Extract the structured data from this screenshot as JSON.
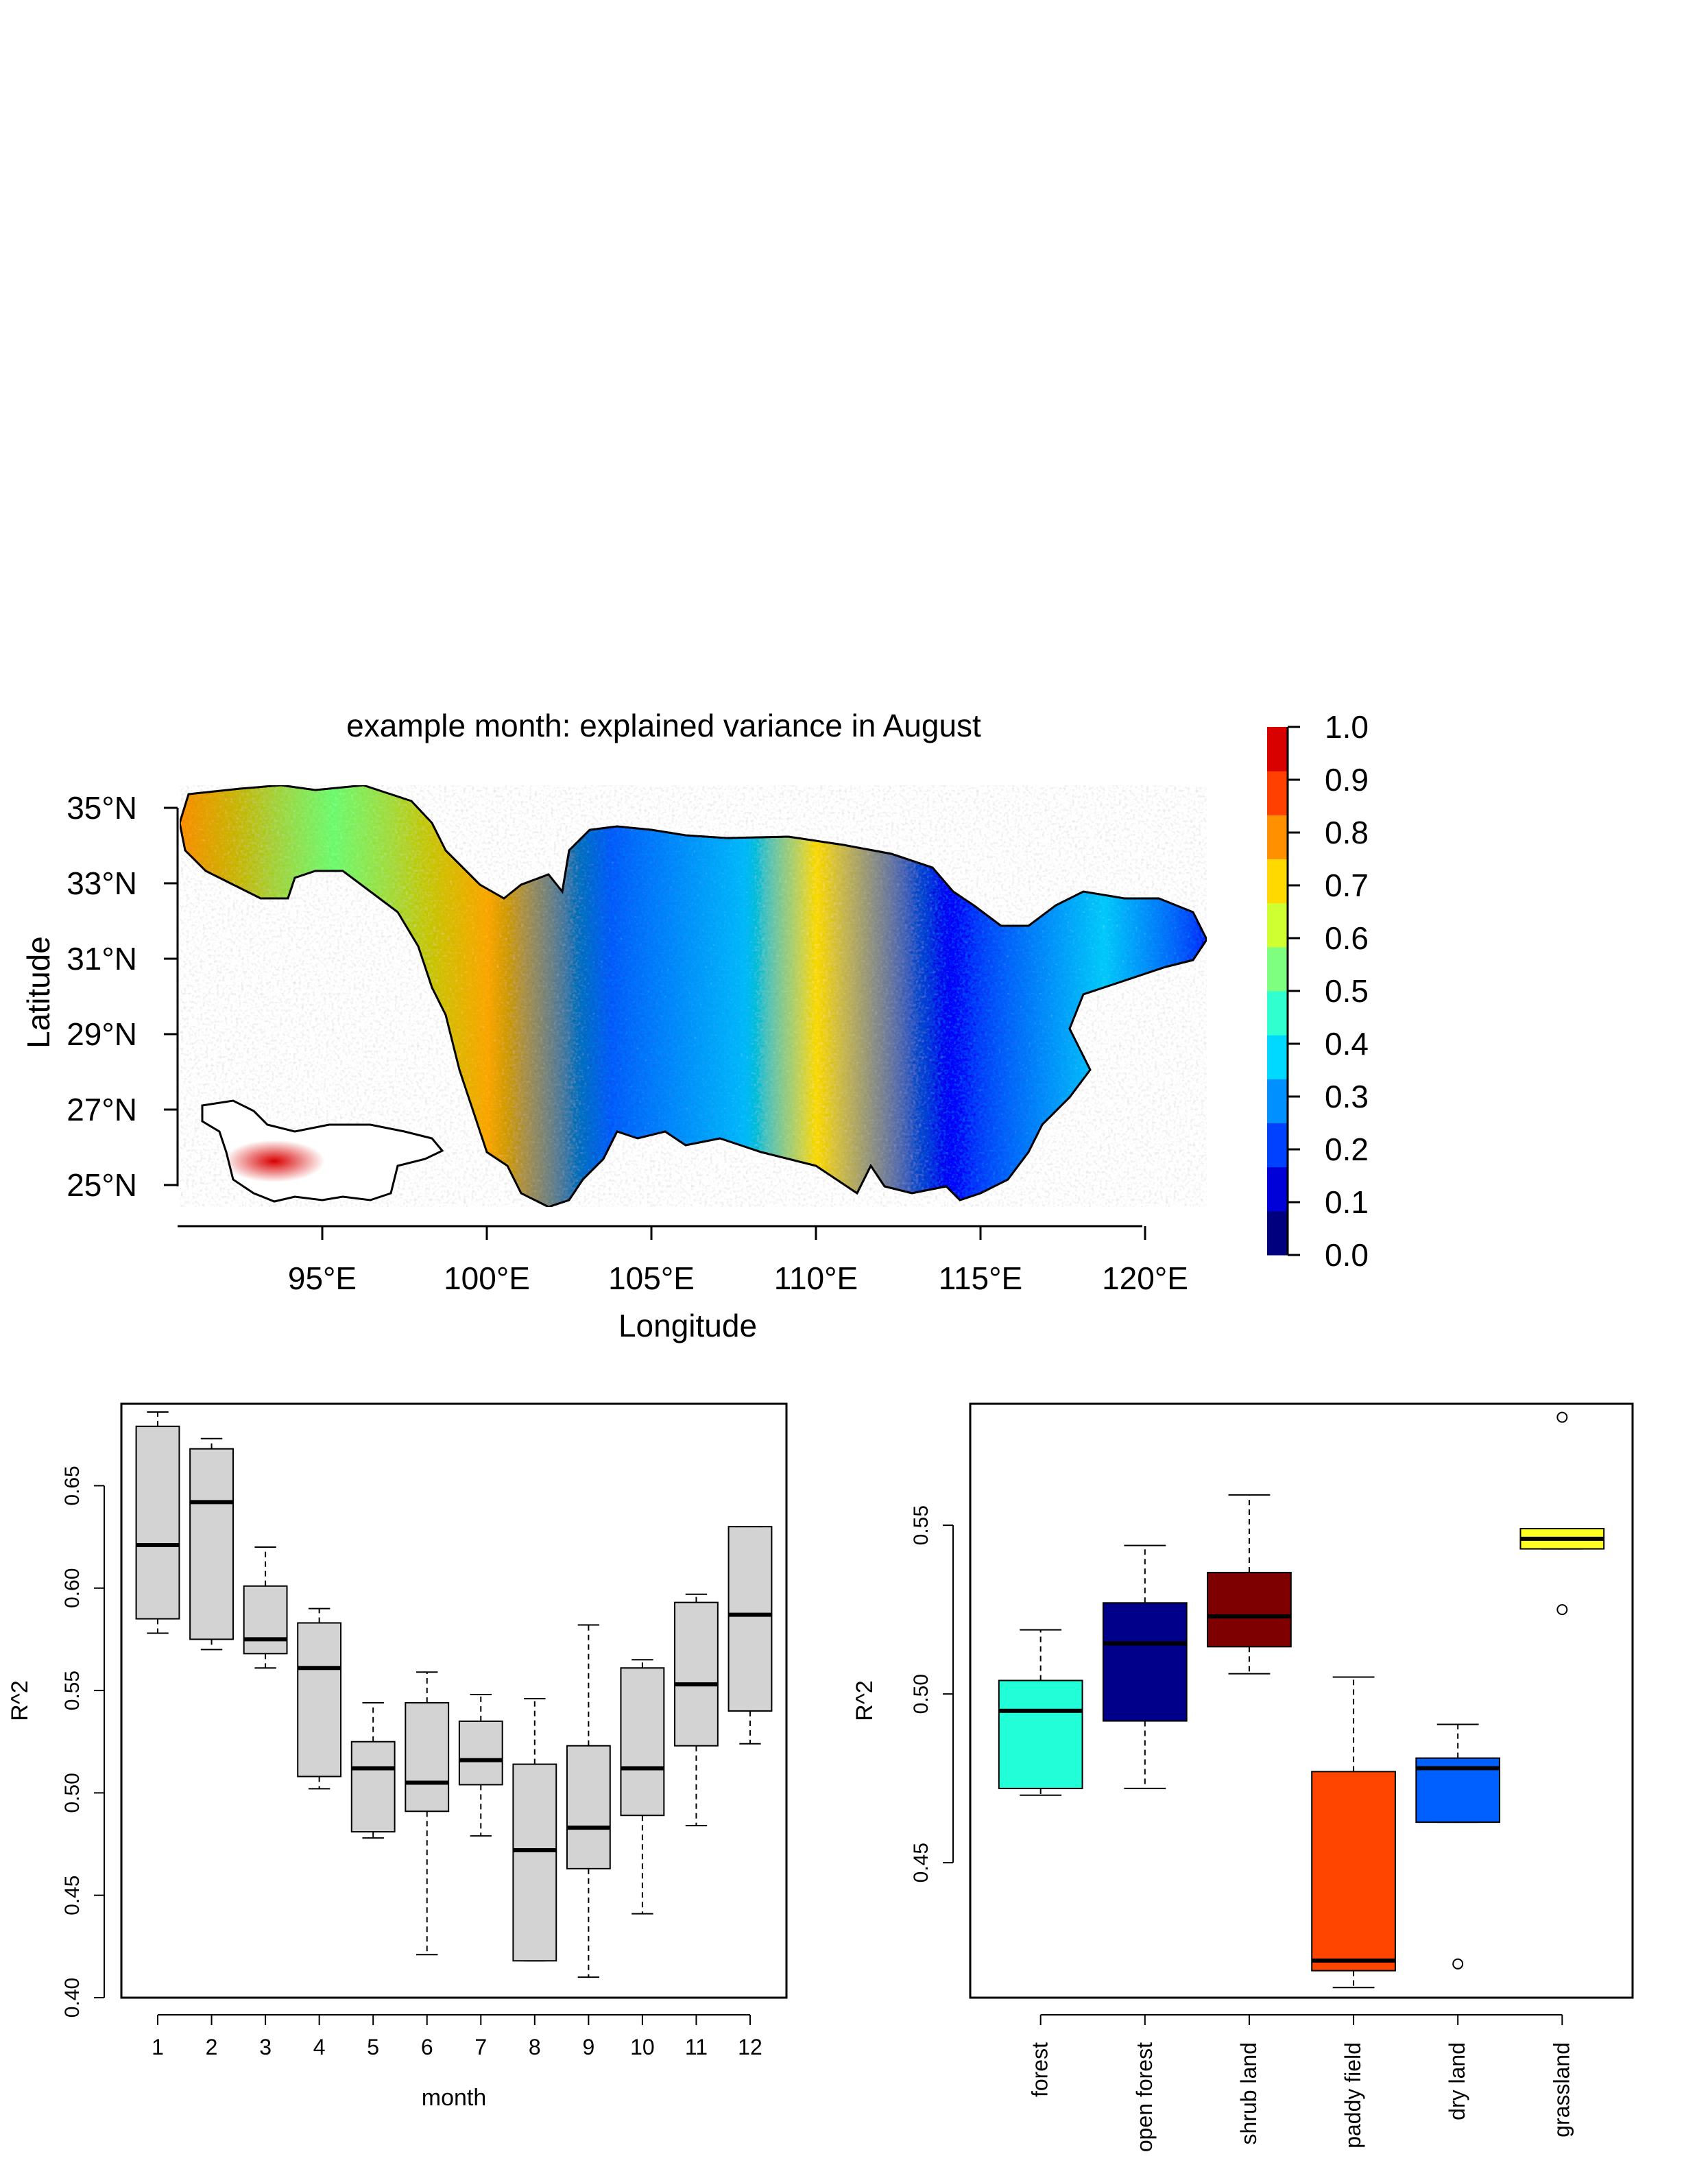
{
  "map_panel": {
    "title": "example month: explained variance in August",
    "xlabel": "Longitude",
    "ylabel": "Latitude",
    "x_ticks": [
      "95°E",
      "100°E",
      "105°E",
      "110°E",
      "115°E",
      "120°E"
    ],
    "y_ticks": [
      "35°N",
      "33°N",
      "31°N",
      "29°N",
      "27°N",
      "25°N"
    ],
    "legend_labels": [
      "1.0",
      "0.9",
      "0.8",
      "0.7",
      "0.6",
      "0.5",
      "0.4",
      "0.3",
      "0.2",
      "0.1",
      "0.0"
    ],
    "legend_colors": [
      "#00007f",
      "#0000d9",
      "#0040ff",
      "#0090ff",
      "#00d9ff",
      "#30ffcf",
      "#7fff80",
      "#cfff30",
      "#ffd900",
      "#ff9000",
      "#ff4000",
      "#d90000"
    ]
  },
  "chart_data": [
    {
      "type": "box",
      "xlabel": "month",
      "ylabel": "R^2",
      "ylim": [
        0.4,
        0.69
      ],
      "y_ticks": [
        "0.40",
        "0.45",
        "0.50",
        "0.55",
        "0.60",
        "0.65"
      ],
      "categories": [
        "1",
        "2",
        "3",
        "4",
        "5",
        "6",
        "7",
        "8",
        "9",
        "10",
        "11",
        "12"
      ],
      "box_color": "#d3d3d3",
      "boxes": [
        {
          "min": 0.578,
          "q1": 0.585,
          "median": 0.621,
          "q3": 0.679,
          "max": 0.686
        },
        {
          "min": 0.57,
          "q1": 0.575,
          "median": 0.642,
          "q3": 0.668,
          "max": 0.673
        },
        {
          "min": 0.561,
          "q1": 0.568,
          "median": 0.575,
          "q3": 0.601,
          "max": 0.62
        },
        {
          "min": 0.502,
          "q1": 0.508,
          "median": 0.561,
          "q3": 0.583,
          "max": 0.59
        },
        {
          "min": 0.478,
          "q1": 0.481,
          "median": 0.512,
          "q3": 0.525,
          "max": 0.544
        },
        {
          "min": 0.421,
          "q1": 0.491,
          "median": 0.505,
          "q3": 0.544,
          "max": 0.559
        },
        {
          "min": 0.479,
          "q1": 0.504,
          "median": 0.516,
          "q3": 0.535,
          "max": 0.548
        },
        {
          "min": 0.418,
          "q1": 0.418,
          "median": 0.472,
          "q3": 0.514,
          "max": 0.546
        },
        {
          "min": 0.41,
          "q1": 0.463,
          "median": 0.483,
          "q3": 0.523,
          "max": 0.582
        },
        {
          "min": 0.441,
          "q1": 0.489,
          "median": 0.512,
          "q3": 0.561,
          "max": 0.565
        },
        {
          "min": 0.484,
          "q1": 0.523,
          "median": 0.553,
          "q3": 0.593,
          "max": 0.597
        },
        {
          "min": 0.524,
          "q1": 0.54,
          "median": 0.587,
          "q3": 0.63,
          "max": 0.63
        }
      ]
    },
    {
      "type": "box",
      "xlabel": "",
      "ylabel": "R^2",
      "ylim": [
        0.41,
        0.586
      ],
      "y_ticks": [
        "0.45",
        "0.50",
        "0.55"
      ],
      "categories": [
        "forest",
        "open forest",
        "shrub land",
        "paddy field",
        "dry land",
        "grassland"
      ],
      "boxes": [
        {
          "min": 0.47,
          "q1": 0.472,
          "median": 0.495,
          "q3": 0.504,
          "max": 0.519,
          "color": "#22ffd8",
          "outliers": []
        },
        {
          "min": 0.472,
          "q1": 0.492,
          "median": 0.515,
          "q3": 0.527,
          "max": 0.544,
          "color": "#00008b",
          "outliers": []
        },
        {
          "min": 0.506,
          "q1": 0.514,
          "median": 0.523,
          "q3": 0.536,
          "max": 0.559,
          "color": "#7f0000",
          "outliers": []
        },
        {
          "min": 0.413,
          "q1": 0.418,
          "median": 0.421,
          "q3": 0.477,
          "max": 0.505,
          "color": "#ff4500",
          "outliers": []
        },
        {
          "min": 0.462,
          "q1": 0.462,
          "median": 0.478,
          "q3": 0.481,
          "max": 0.491,
          "color": "#0060ff",
          "outliers": [
            0.42
          ]
        },
        {
          "min": 0.543,
          "q1": 0.543,
          "median": 0.546,
          "q3": 0.549,
          "max": 0.549,
          "color": "#ffff22",
          "outliers": [
            0.525,
            0.582
          ]
        }
      ]
    }
  ]
}
